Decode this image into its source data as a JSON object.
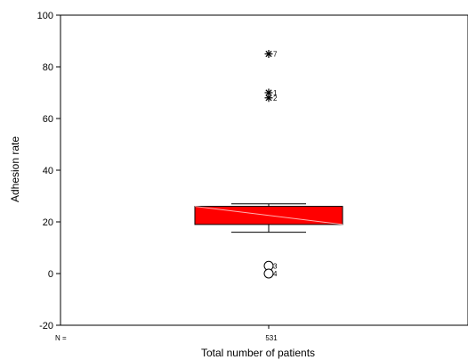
{
  "chart_data": {
    "type": "boxplot",
    "title": "",
    "xlabel": "Total number of patients",
    "ylabel": "Adhesion rate",
    "ylim": [
      -20,
      100
    ],
    "yticks": [
      -20,
      0,
      20,
      40,
      60,
      80,
      100
    ],
    "n_prefix": "N =",
    "grid": false,
    "box": {
      "n": "531",
      "whisker_low": 16,
      "q1": 19,
      "median": 23,
      "q3": 26,
      "whisker_high": 27,
      "color": "#ff0000"
    },
    "outliers": [
      {
        "value": 3,
        "label": "3",
        "marker": "circle"
      },
      {
        "value": 0,
        "label": "4",
        "marker": "circle"
      }
    ],
    "extremes": [
      {
        "value": 85,
        "label": "7",
        "marker": "asterisk"
      },
      {
        "value": 70,
        "label": "1",
        "marker": "asterisk"
      },
      {
        "value": 68,
        "label": "2",
        "marker": "asterisk"
      }
    ]
  }
}
